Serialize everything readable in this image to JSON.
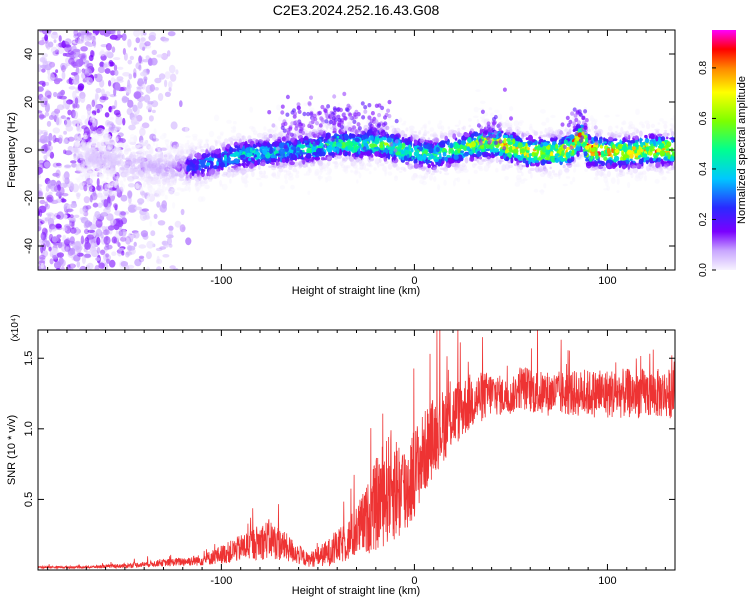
{
  "figure": {
    "title": "C2E3.2024.252.16.43.G08"
  },
  "chart_data": [
    {
      "type": "heatmap",
      "title": "C2E3.2024.252.16.43.G08",
      "xlabel": "Height of straight line (km)",
      "ylabel": "Frequency (Hz)",
      "xlim": [
        -195,
        135
      ],
      "ylim": [
        -50,
        50
      ],
      "x_ticks": [
        -100,
        0,
        100
      ],
      "y_ticks": [
        -40,
        -20,
        0,
        20,
        40
      ],
      "grid": false,
      "colorbar": {
        "label": "Normalized spectral amplitude",
        "range": [
          0,
          0.95
        ],
        "ticks": [
          0.0,
          0.2,
          0.4,
          0.6,
          0.8
        ],
        "colormap": [
          "#f7f3ff",
          "#c9a6ff",
          "#7a00ff",
          "#2a2aff",
          "#00c8ff",
          "#00ff90",
          "#7dff00",
          "#ffff00",
          "#ff8800",
          "#ff0000",
          "#ff00ff"
        ]
      },
      "description_points": {
        "x": [
          -195,
          -160,
          -130,
          -110,
          -90,
          -70,
          -50,
          -40,
          -30,
          -20,
          -10,
          0,
          10,
          20,
          30,
          40,
          50,
          60,
          70,
          80,
          87,
          90,
          100,
          110,
          120,
          135
        ],
        "center_freq": [
          0,
          -4,
          -8,
          -6,
          -2,
          -1,
          1,
          3,
          2,
          3,
          1,
          -1,
          -2,
          0,
          2,
          3,
          1,
          -1,
          -1,
          0,
          6,
          0,
          -1,
          -1,
          0,
          0
        ],
        "peak_amplitude": [
          0.05,
          0.1,
          0.15,
          0.35,
          0.45,
          0.45,
          0.5,
          0.55,
          0.55,
          0.6,
          0.65,
          0.55,
          0.55,
          0.6,
          0.65,
          0.8,
          0.85,
          0.8,
          0.8,
          0.85,
          0.9,
          0.95,
          0.85,
          0.85,
          0.85,
          0.8
        ]
      }
    },
    {
      "type": "line",
      "title": "",
      "xlabel": "Height of straight line (km)",
      "ylabel": "SNR (10 * v/v)",
      "scale_label": "(x10⁴)",
      "xlim": [
        -195,
        135
      ],
      "ylim": [
        0,
        1.7
      ],
      "x_ticks": [
        -100,
        0,
        100
      ],
      "y_ticks": [
        0.5,
        1.0,
        1.5
      ],
      "grid": false,
      "series": [
        {
          "name": "SNR",
          "color": "#ee3333",
          "x": [
            -195,
            -170,
            -150,
            -130,
            -110,
            -95,
            -85,
            -75,
            -65,
            -55,
            -45,
            -35,
            -25,
            -18,
            -12,
            -5,
            0,
            10,
            20,
            30,
            40,
            50,
            55,
            65,
            80,
            100,
            120,
            135
          ],
          "mean": [
            0.02,
            0.02,
            0.03,
            0.05,
            0.07,
            0.13,
            0.18,
            0.22,
            0.15,
            0.07,
            0.12,
            0.2,
            0.35,
            0.5,
            0.6,
            0.55,
            0.7,
            0.95,
            1.1,
            1.2,
            1.25,
            1.22,
            1.3,
            1.25,
            1.25,
            1.25,
            1.25,
            1.25
          ],
          "spread": [
            0.01,
            0.01,
            0.02,
            0.03,
            0.05,
            0.1,
            0.14,
            0.18,
            0.12,
            0.06,
            0.12,
            0.18,
            0.3,
            0.45,
            0.5,
            0.45,
            0.4,
            0.35,
            0.3,
            0.25,
            0.2,
            0.15,
            0.2,
            0.2,
            0.2,
            0.22,
            0.22,
            0.22
          ]
        }
      ]
    }
  ]
}
